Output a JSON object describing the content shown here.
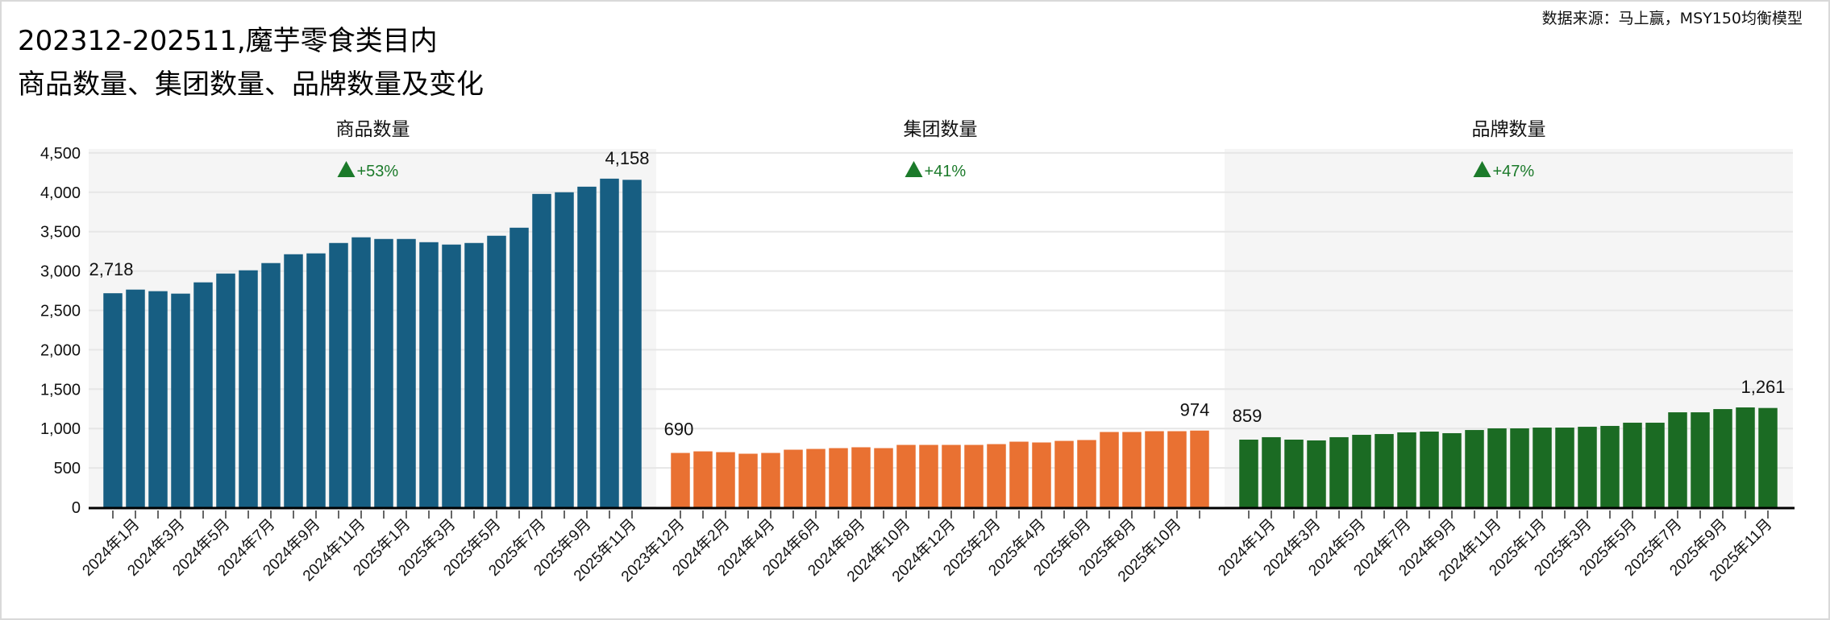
{
  "header": {
    "title_line1": "202312-202511,魔芋零食类目内",
    "title_line2": "商品数量、集团数量、品牌数量及变化",
    "source": "数据来源：马上赢，MSY150均衡模型"
  },
  "chart_data": {
    "type": "bar",
    "ylim": [
      0,
      4550
    ],
    "yticks": [
      0,
      500,
      1000,
      1500,
      2000,
      2500,
      3000,
      3500,
      4000,
      4500
    ],
    "ytick_labels": [
      "0",
      "500",
      "1,000",
      "1,500",
      "2,000",
      "2,500",
      "3,000",
      "3,500",
      "4,000",
      "4,500"
    ],
    "grid": true,
    "categories": [
      "2023年12月",
      "2024年1月",
      "2024年2月",
      "2024年3月",
      "2024年4月",
      "2024年5月",
      "2024年6月",
      "2024年7月",
      "2024年8月",
      "2024年9月",
      "2024年10月",
      "2024年11月",
      "2024年12月",
      "2025年1月",
      "2025年2月",
      "2025年3月",
      "2025年4月",
      "2025年5月",
      "2025年6月",
      "2025年7月",
      "2025年8月",
      "2025年9月",
      "2025年10月",
      "2025年11月"
    ],
    "panels": [
      {
        "name": "商品数量",
        "color": "#175e82",
        "background": "#f5f5f5",
        "change_label": "+53%",
        "first_label": "2,718",
        "last_label": "4,158",
        "label_offset": 1,
        "values": [
          2718,
          2764,
          2744,
          2713,
          2856,
          2968,
          3009,
          3101,
          3213,
          3224,
          3356,
          3428,
          3407,
          3407,
          3366,
          3336,
          3356,
          3448,
          3550,
          3979,
          4000,
          4071,
          4173,
          4158
        ]
      },
      {
        "name": "集团数量",
        "color": "#e97132",
        "background": "#ffffff",
        "change_label": "+41%",
        "first_label": "690",
        "last_label": "974",
        "label_offset": 0,
        "values": [
          690,
          710,
          700,
          680,
          690,
          731,
          741,
          751,
          762,
          751,
          792,
          792,
          792,
          792,
          802,
          833,
          823,
          843,
          854,
          956,
          956,
          966,
          966,
          974
        ]
      },
      {
        "name": "品牌数量",
        "color": "#1b6b23",
        "background": "#f5f5f5",
        "change_label": "+47%",
        "first_label": "859",
        "last_label": "1,261",
        "label_offset": 1,
        "values": [
          859,
          890,
          859,
          849,
          890,
          920,
          930,
          951,
          961,
          941,
          981,
          1002,
          1002,
          1012,
          1012,
          1022,
          1033,
          1074,
          1074,
          1206,
          1206,
          1247,
          1268,
          1261
        ]
      }
    ],
    "change_color": "#1b7a2a"
  }
}
